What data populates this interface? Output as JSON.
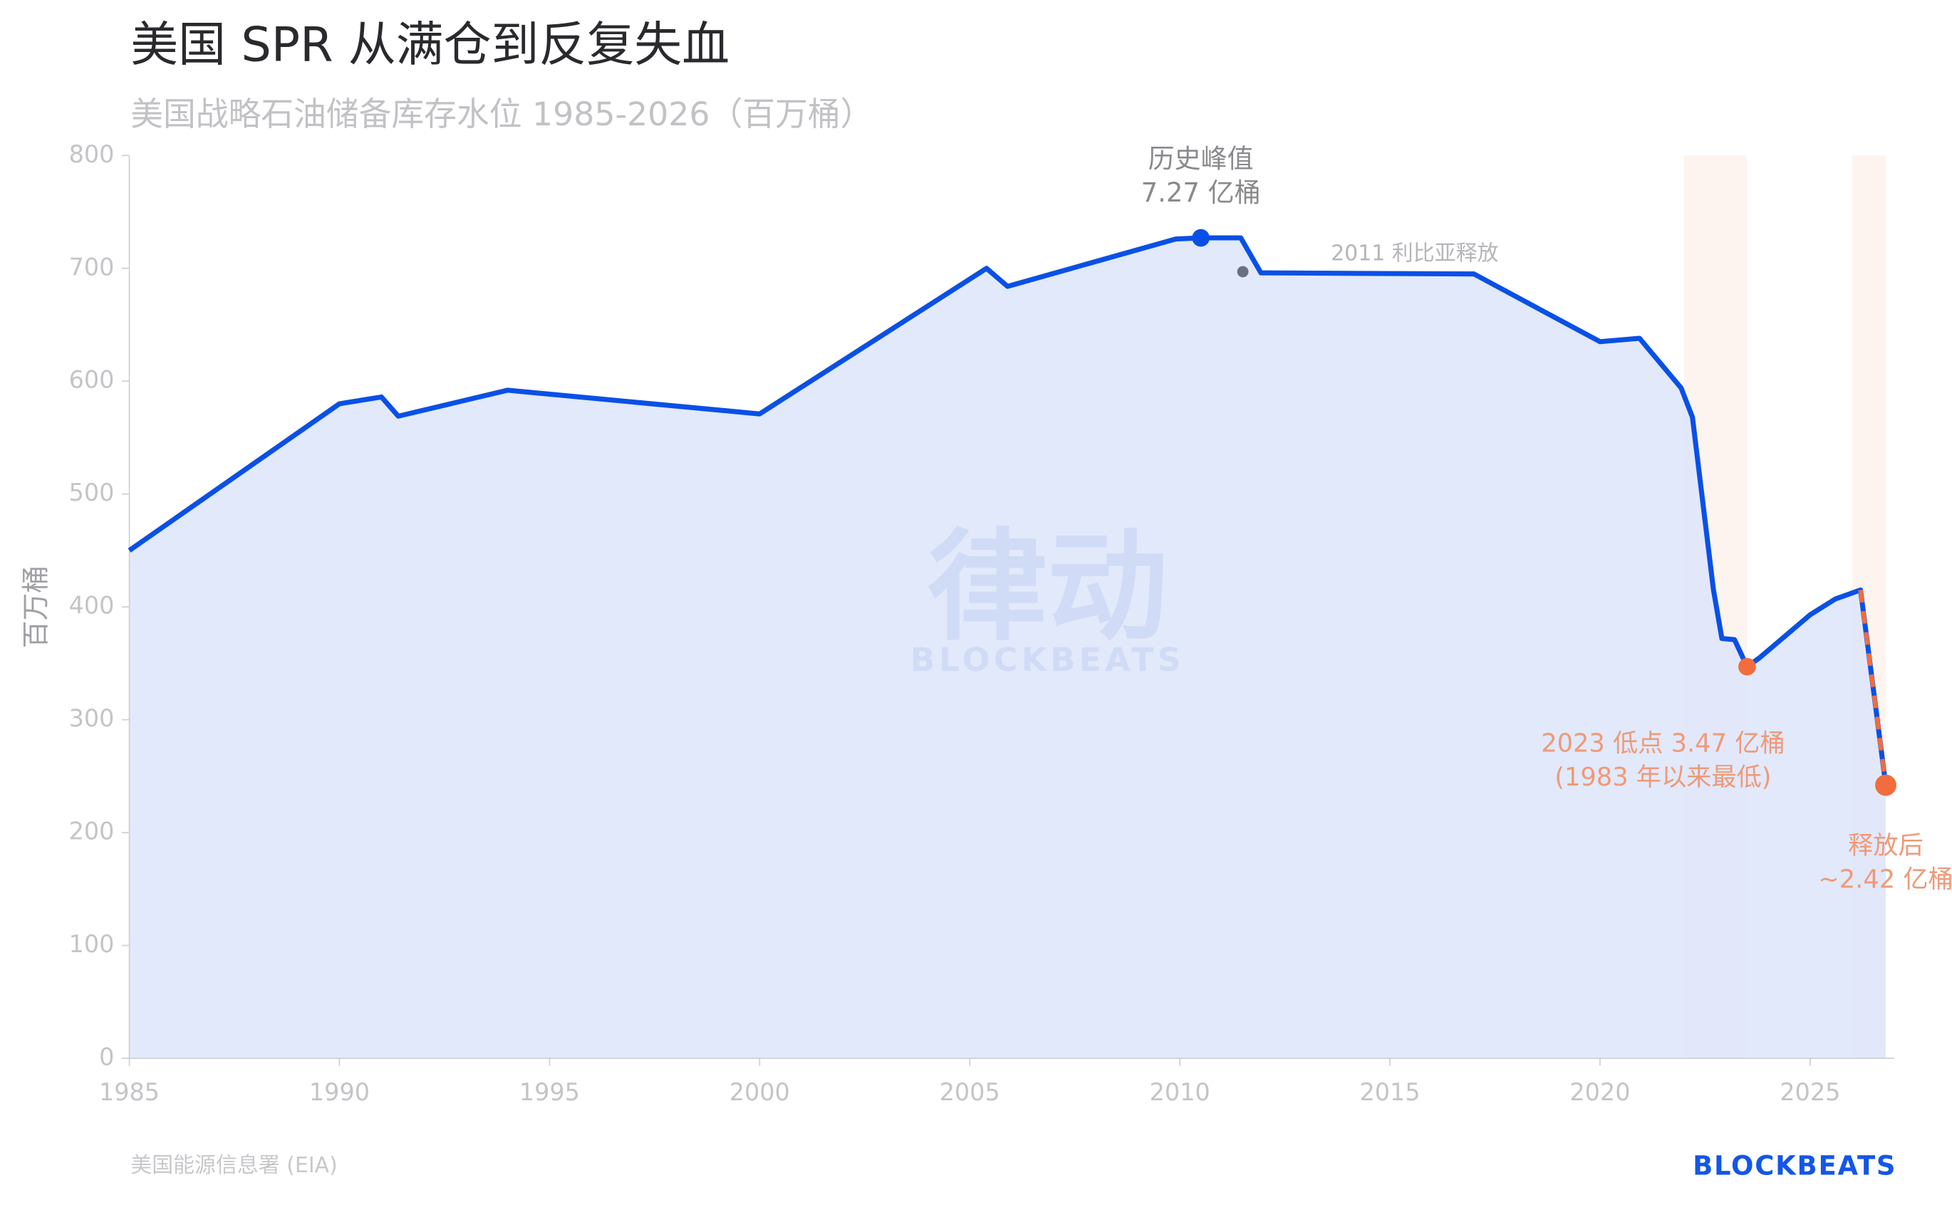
{
  "chart_data": {
    "type": "line",
    "title": "美国 SPR 从满仓到反复失血",
    "subtitle": "美国战略石油储备库存水位 1985-2026（百万桶）",
    "y_label": "百万桶",
    "source": "美国能源信息署 (EIA)",
    "logo": "BLOCKBEATS",
    "watermark": [
      "律动",
      "BLOCKBEATS"
    ],
    "x": [
      1985,
      1990,
      1991,
      1991.4,
      1994,
      2000,
      2005.4,
      2005.9,
      2009.9,
      2010.5,
      2011.45,
      2011.93,
      2017,
      2020,
      2020.94,
      2021.93,
      2022.2,
      2022.7,
      2022.9,
      2023.2,
      2023.5,
      2023.8,
      2025,
      2025.6,
      2026.2,
      2026.8
    ],
    "series": [
      {
        "color": "#0a50e6",
        "fill": "#dfe7fb",
        "values": [
          450,
          580,
          586,
          569,
          592,
          571,
          700,
          684,
          726,
          727,
          727,
          696,
          695,
          635,
          638,
          594,
          568,
          415,
          372,
          371,
          347,
          355,
          393,
          407,
          415,
          242
        ]
      }
    ],
    "projection": {
      "x": [
        2026.2,
        2026.8
      ],
      "values": [
        415,
        242
      ],
      "color": "#f26d3d"
    },
    "highlights": [
      [
        2022,
        2023.5
      ],
      [
        2026,
        2026.8
      ]
    ],
    "annotations": [
      {
        "text": [
          "历史峰值",
          "7.27 亿桶"
        ],
        "x": 2010.5,
        "y": 727,
        "color": "#0a50e6",
        "text_color": "#8a8a8e"
      },
      {
        "text": [
          "2011 利比亚释放"
        ],
        "x": 2011.5,
        "y": 697,
        "color": "#6b7080",
        "text_color": "#b5b5ba"
      },
      {
        "text": [
          "2023 低点 3.47 亿桶",
          "(1983 年以来最低)"
        ],
        "x": 2023.5,
        "y": 347,
        "color": "#f26d3d",
        "text_color": "#ee9a78"
      },
      {
        "text": [
          "释放后",
          "~2.42 亿桶"
        ],
        "x": 2026.8,
        "y": 242,
        "color": "#f26d3d",
        "text_color": "#ee9a78"
      }
    ],
    "xlim": [
      1985,
      2027
    ],
    "ylim": [
      0,
      800
    ],
    "xticks": [
      1985,
      1990,
      1995,
      2000,
      2005,
      2010,
      2015,
      2020,
      2025
    ],
    "yticks": [
      0,
      100,
      200,
      300,
      400,
      500,
      600,
      700,
      800
    ]
  }
}
